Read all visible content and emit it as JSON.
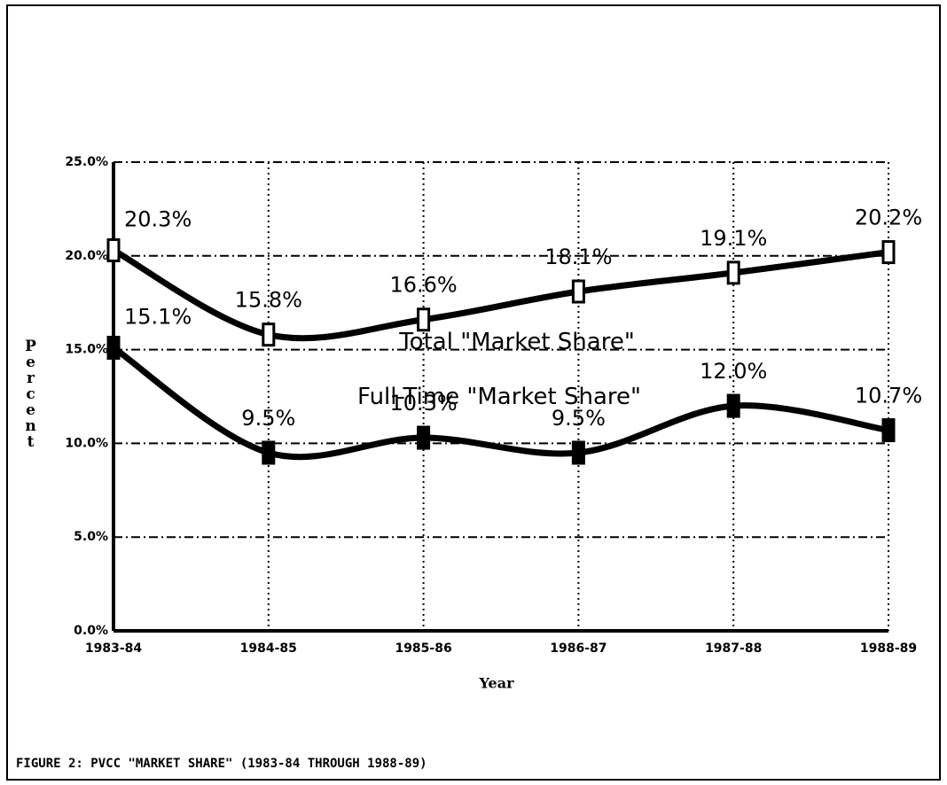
{
  "chart_data": {
    "type": "line",
    "title": "FIGURE 2:  PVCC \"MARKET SHARE\" (1983-84 THROUGH 1988-89)",
    "x_label": "Year",
    "y_label": "Percent",
    "categories": [
      "1983-84",
      "1984-85",
      "1985-86",
      "1986-87",
      "1987-88",
      "1988-89"
    ],
    "series": [
      {
        "name": "Total \"Market Share\"",
        "color": "#000000",
        "marker": "hollow",
        "values": [
          20.3,
          15.8,
          16.6,
          18.1,
          19.1,
          20.2
        ],
        "value_labels": [
          "20.3%",
          "15.8%",
          "16.6%",
          "18.1%",
          "19.1%",
          "20.2%"
        ]
      },
      {
        "name": "Full-Time \"Market Share\"",
        "color": "#000000",
        "marker": "filled",
        "values": [
          15.1,
          9.5,
          10.3,
          9.5,
          12.0,
          10.7
        ],
        "value_labels": [
          "15.1%",
          "9.5%",
          "10.3%",
          "9.5%",
          "12.0%",
          "10.7%"
        ]
      }
    ],
    "ylim": [
      0,
      25
    ],
    "yticks": [
      {
        "value": 0,
        "label": "0.0%"
      },
      {
        "value": 5,
        "label": "5.0%"
      },
      {
        "value": 10,
        "label": "10.0%"
      },
      {
        "value": 15,
        "label": "15.0%"
      },
      {
        "value": 20,
        "label": "20.0%"
      },
      {
        "value": 25,
        "label": "25.0%"
      }
    ],
    "grid": true
  }
}
